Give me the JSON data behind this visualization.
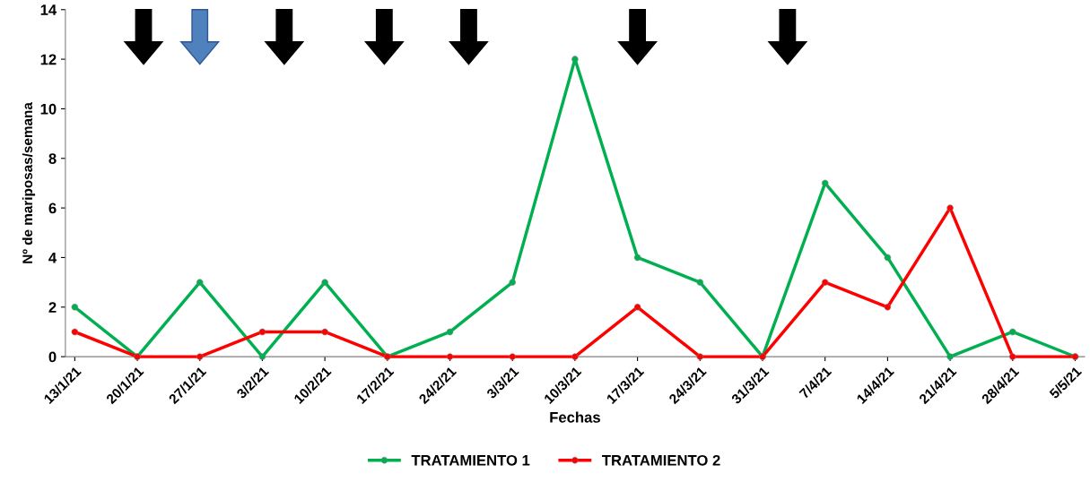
{
  "chart_data": {
    "type": "line",
    "xlabel": "Fechas",
    "ylabel": "Nº de mariposas/semana",
    "categories": [
      "13/1/21",
      "20/1/21",
      "27/1/21",
      "3/2/21",
      "10/2/21",
      "17/2/21",
      "24/2/21",
      "3/3/21",
      "10/3/21",
      "17/3/21",
      "24/3/21",
      "31/3/21",
      "7/4/21",
      "14/4/21",
      "21/4/21",
      "28/4/21",
      "5/5/21"
    ],
    "series": [
      {
        "name": "TRATAMIENTO 1",
        "color": "#00b050",
        "values": [
          2,
          0,
          3,
          0,
          3,
          0,
          1,
          3,
          12,
          4,
          3,
          0,
          7,
          4,
          0,
          1,
          0
        ]
      },
      {
        "name": "TRATAMIENTO 2",
        "color": "#ff0000",
        "values": [
          1,
          0,
          0,
          1,
          1,
          0,
          0,
          0,
          0,
          2,
          0,
          0,
          3,
          2,
          6,
          0,
          0
        ]
      }
    ],
    "ylim": [
      0,
      14
    ],
    "yticks": [
      0,
      2,
      4,
      6,
      8,
      10,
      12,
      14
    ],
    "grid": false,
    "legend": "bottom",
    "marker": "circle",
    "line_style": "solid"
  }
}
